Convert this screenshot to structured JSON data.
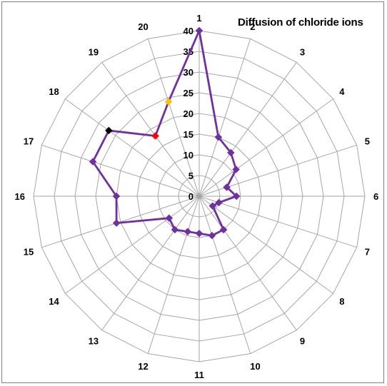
{
  "chart_data": {
    "type": "radar",
    "title": "Diffusion of chloride ions",
    "categories": [
      "1",
      "2",
      "3",
      "4",
      "5",
      "6",
      "7",
      "8",
      "9",
      "10",
      "11",
      "12",
      "13",
      "14",
      "15",
      "16",
      "17",
      "18",
      "19",
      "20"
    ],
    "radial_ticks": [
      "0",
      "5",
      "10",
      "15",
      "20",
      "25",
      "30",
      "35",
      "40"
    ],
    "rlim": [
      0,
      40
    ],
    "grid": true,
    "series": [
      {
        "values": [
          40,
          15,
          13,
          11,
          7,
          9,
          5,
          4,
          10,
          10,
          9,
          9,
          10,
          9,
          21,
          20,
          27,
          27,
          18,
          24
        ]
      }
    ],
    "highlighted_points": [
      {
        "category": "18",
        "value": 27,
        "color": "#000000"
      },
      {
        "category": "19",
        "value": 18,
        "color": "#ff0000"
      },
      {
        "category": "20",
        "value": 24,
        "color": "#ffc000"
      }
    ],
    "colors": {
      "series": "#7030a0",
      "grid": "#a6a6a6",
      "text": "#000000"
    }
  }
}
